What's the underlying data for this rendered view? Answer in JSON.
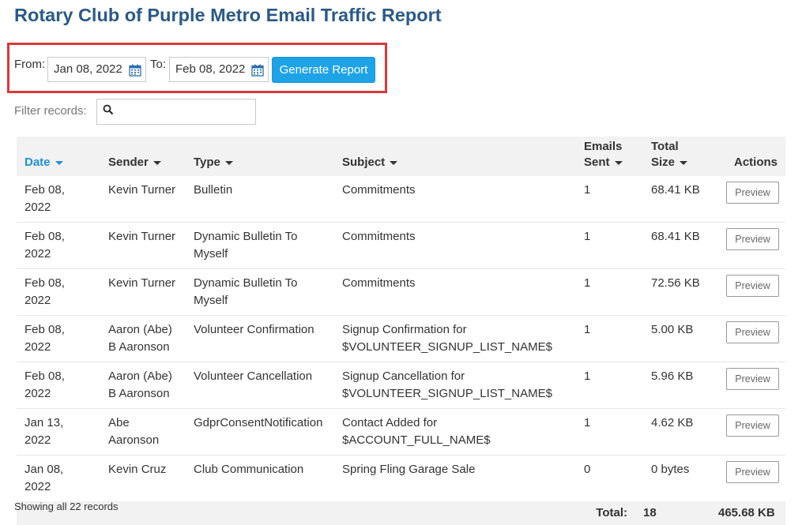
{
  "page_title": "Rotary Club of Purple Metro Email Traffic Report",
  "date_filter": {
    "from_label": "From:",
    "from_value": "Jan 08, 2022",
    "to_label": "To:",
    "to_value": "Feb 08, 2022",
    "generate_label": "Generate Report",
    "calendar_icon": "calendar-icon"
  },
  "filter": {
    "label": "Filter records:",
    "value": "",
    "icon": "search-icon"
  },
  "table": {
    "columns": {
      "date": "Date",
      "sender": "Sender",
      "type": "Type",
      "subject": "Subject",
      "emails_sent_line1": "Emails",
      "emails_sent_line2": "Sent",
      "total_size_line1": "Total",
      "total_size_line2": "Size",
      "actions": "Actions"
    },
    "sort_column": "Date",
    "rows": [
      {
        "date": "Feb 08, 2022",
        "sender": "Kevin Turner",
        "type": "Bulletin",
        "subject": "Commitments",
        "emails_sent": "1",
        "total_size": "68.41 KB",
        "action": "Preview"
      },
      {
        "date": "Feb 08, 2022",
        "sender": "Kevin Turner",
        "type": "Dynamic Bulletin To Myself",
        "subject": "Commitments",
        "emails_sent": "1",
        "total_size": "68.41 KB",
        "action": "Preview"
      },
      {
        "date": "Feb 08, 2022",
        "sender": "Kevin Turner",
        "type": "Dynamic Bulletin To Myself",
        "subject": "Commitments",
        "emails_sent": "1",
        "total_size": "72.56 KB",
        "action": "Preview"
      },
      {
        "date": "Feb 08, 2022",
        "sender": "Aaron (Abe) B Aaronson",
        "type": "Volunteer Confirmation",
        "subject": "Signup Confirmation for $VOLUNTEER_SIGNUP_LIST_NAME$",
        "emails_sent": "1",
        "total_size": "5.00 KB",
        "action": "Preview"
      },
      {
        "date": "Feb 08, 2022",
        "sender": "Aaron (Abe) B Aaronson",
        "type": "Volunteer Cancellation",
        "subject": "Signup Cancellation for $VOLUNTEER_SIGNUP_LIST_NAME$",
        "emails_sent": "1",
        "total_size": "5.96 KB",
        "action": "Preview"
      },
      {
        "date": "Jan 13, 2022",
        "sender": "Abe Aaronson",
        "type": "GdprConsentNotification",
        "subject": "Contact Added for $ACCOUNT_FULL_NAME$",
        "emails_sent": "1",
        "total_size": "4.62 KB",
        "action": "Preview"
      },
      {
        "date": "Jan 08, 2022",
        "sender": "Kevin Cruz",
        "type": "Club Communication",
        "subject": "Spring Fling Garage Sale",
        "emails_sent": "0",
        "total_size": "0 bytes",
        "action": "Preview"
      }
    ],
    "totals": {
      "label": "Total:",
      "emails_sent": "18",
      "total_size": "465.68 KB"
    }
  },
  "footer": {
    "showing": "Showing all 22 records"
  },
  "colors": {
    "title": "#2a5a86",
    "highlight_border": "#d9393b",
    "primary_button": "#1ea3e6",
    "link": "#1e7fc5",
    "header_bg": "#f2f2f2"
  }
}
